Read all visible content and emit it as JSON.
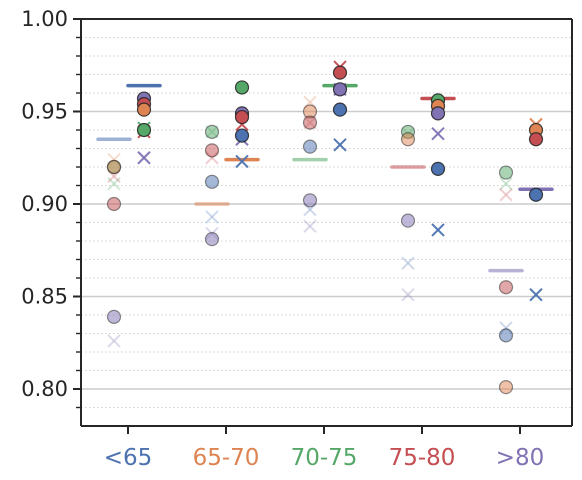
{
  "chart_data": {
    "type": "scatter",
    "title": "",
    "xlabel": "",
    "ylabel": "",
    "ylim": [
      0.78,
      1.0
    ],
    "yticks": [
      "0.80",
      "0.85",
      "0.90",
      "0.95",
      "1.00"
    ],
    "grid": true,
    "categories": [
      "<65",
      "65-70",
      "70-75",
      "75-80",
      ">80"
    ],
    "category_colors": [
      "#4c72b0",
      "#dd8452",
      "#55a868",
      "#c44e52",
      "#8172b3"
    ],
    "groups": [
      {
        "category": "<65",
        "left": {
          "mean": 0.935,
          "mean_color": "#4c72b0",
          "circles": [
            {
              "y": 0.92,
              "color": "#55a868"
            },
            {
              "y": 0.92,
              "color": "#dd8452"
            },
            {
              "y": 0.9,
              "color": "#c44e52"
            },
            {
              "y": 0.839,
              "color": "#8172b3"
            }
          ],
          "crosses": [
            {
              "y": 0.924,
              "color": "#dd8452"
            },
            {
              "y": 0.915,
              "color": "#c44e52"
            },
            {
              "y": 0.911,
              "color": "#55a868"
            },
            {
              "y": 0.826,
              "color": "#8172b3"
            }
          ]
        },
        "right": {
          "mean": 0.964,
          "mean_color": "#4c72b0",
          "circles": [
            {
              "y": 0.957,
              "color": "#8172b3"
            },
            {
              "y": 0.954,
              "color": "#c44e52"
            },
            {
              "y": 0.951,
              "color": "#dd8452"
            },
            {
              "y": 0.94,
              "color": "#55a868"
            }
          ],
          "crosses": [
            {
              "y": 0.941,
              "color": "#55a868"
            },
            {
              "y": 0.939,
              "color": "#c44e52"
            },
            {
              "y": 0.925,
              "color": "#8172b3"
            }
          ]
        }
      },
      {
        "category": "65-70",
        "left": {
          "mean": 0.9,
          "mean_color": "#dd8452",
          "circles": [
            {
              "y": 0.939,
              "color": "#55a868"
            },
            {
              "y": 0.929,
              "color": "#c44e52"
            },
            {
              "y": 0.912,
              "color": "#4c72b0"
            },
            {
              "y": 0.881,
              "color": "#8172b3"
            }
          ],
          "crosses": [
            {
              "y": 0.939,
              "color": "#55a868"
            },
            {
              "y": 0.925,
              "color": "#c44e52"
            },
            {
              "y": 0.893,
              "color": "#4c72b0"
            },
            {
              "y": 0.884,
              "color": "#8172b3"
            }
          ]
        },
        "right": {
          "mean": 0.924,
          "mean_color": "#dd8452",
          "circles": [
            {
              "y": 0.963,
              "color": "#55a868"
            },
            {
              "y": 0.949,
              "color": "#8172b3"
            },
            {
              "y": 0.947,
              "color": "#c44e52"
            },
            {
              "y": 0.937,
              "color": "#4c72b0"
            }
          ],
          "crosses": [
            {
              "y": 0.943,
              "color": "#c44e52"
            },
            {
              "y": 0.935,
              "color": "#8172b3"
            },
            {
              "y": 0.923,
              "color": "#4c72b0"
            }
          ]
        }
      },
      {
        "category": "70-75",
        "left": {
          "mean": 0.924,
          "mean_color": "#55a868",
          "circles": [
            {
              "y": 0.95,
              "color": "#dd8452"
            },
            {
              "y": 0.944,
              "color": "#c44e52"
            },
            {
              "y": 0.931,
              "color": "#4c72b0"
            },
            {
              "y": 0.902,
              "color": "#8172b3"
            }
          ],
          "crosses": [
            {
              "y": 0.955,
              "color": "#dd8452"
            },
            {
              "y": 0.944,
              "color": "#c44e52"
            },
            {
              "y": 0.897,
              "color": "#4c72b0"
            },
            {
              "y": 0.888,
              "color": "#8172b3"
            }
          ]
        },
        "right": {
          "mean": 0.964,
          "mean_color": "#55a868",
          "circles": [
            {
              "y": 0.971,
              "color": "#c44e52"
            },
            {
              "y": 0.962,
              "color": "#8172b3"
            },
            {
              "y": 0.951,
              "color": "#4c72b0"
            }
          ],
          "crosses": [
            {
              "y": 0.974,
              "color": "#c44e52"
            },
            {
              "y": 0.962,
              "color": "#8172b3"
            },
            {
              "y": 0.932,
              "color": "#4c72b0"
            }
          ]
        }
      },
      {
        "category": "75-80",
        "left": {
          "mean": 0.92,
          "mean_color": "#c44e52",
          "circles": [
            {
              "y": 0.939,
              "color": "#55a868"
            },
            {
              "y": 0.935,
              "color": "#dd8452"
            },
            {
              "y": 0.891,
              "color": "#8172b3"
            }
          ],
          "crosses": [
            {
              "y": 0.938,
              "color": "#55a868"
            },
            {
              "y": 0.868,
              "color": "#4c72b0"
            },
            {
              "y": 0.851,
              "color": "#8172b3"
            }
          ]
        },
        "right": {
          "mean": 0.957,
          "mean_color": "#c44e52",
          "circles": [
            {
              "y": 0.956,
              "color": "#55a868"
            },
            {
              "y": 0.953,
              "color": "#dd8452"
            },
            {
              "y": 0.949,
              "color": "#8172b3"
            },
            {
              "y": 0.919,
              "color": "#4c72b0"
            }
          ],
          "crosses": [
            {
              "y": 0.954,
              "color": "#55a868"
            },
            {
              "y": 0.938,
              "color": "#8172b3"
            },
            {
              "y": 0.886,
              "color": "#4c72b0"
            }
          ]
        }
      },
      {
        "category": ">80",
        "left": {
          "mean": 0.864,
          "mean_color": "#8172b3",
          "circles": [
            {
              "y": 0.917,
              "color": "#55a868"
            },
            {
              "y": 0.855,
              "color": "#c44e52"
            },
            {
              "y": 0.829,
              "color": "#4c72b0"
            },
            {
              "y": 0.801,
              "color": "#dd8452"
            }
          ],
          "crosses": [
            {
              "y": 0.911,
              "color": "#55a868"
            },
            {
              "y": 0.905,
              "color": "#c44e52"
            },
            {
              "y": 0.833,
              "color": "#4c72b0"
            }
          ]
        },
        "right": {
          "mean": 0.908,
          "mean_color": "#8172b3",
          "circles": [
            {
              "y": 0.94,
              "color": "#dd8452"
            },
            {
              "y": 0.935,
              "color": "#c44e52"
            },
            {
              "y": 0.905,
              "color": "#4c72b0"
            }
          ],
          "crosses": [
            {
              "y": 0.943,
              "color": "#dd8452"
            },
            {
              "y": 0.938,
              "color": "#c44e52"
            },
            {
              "y": 0.851,
              "color": "#4c72b0"
            }
          ]
        }
      }
    ]
  }
}
